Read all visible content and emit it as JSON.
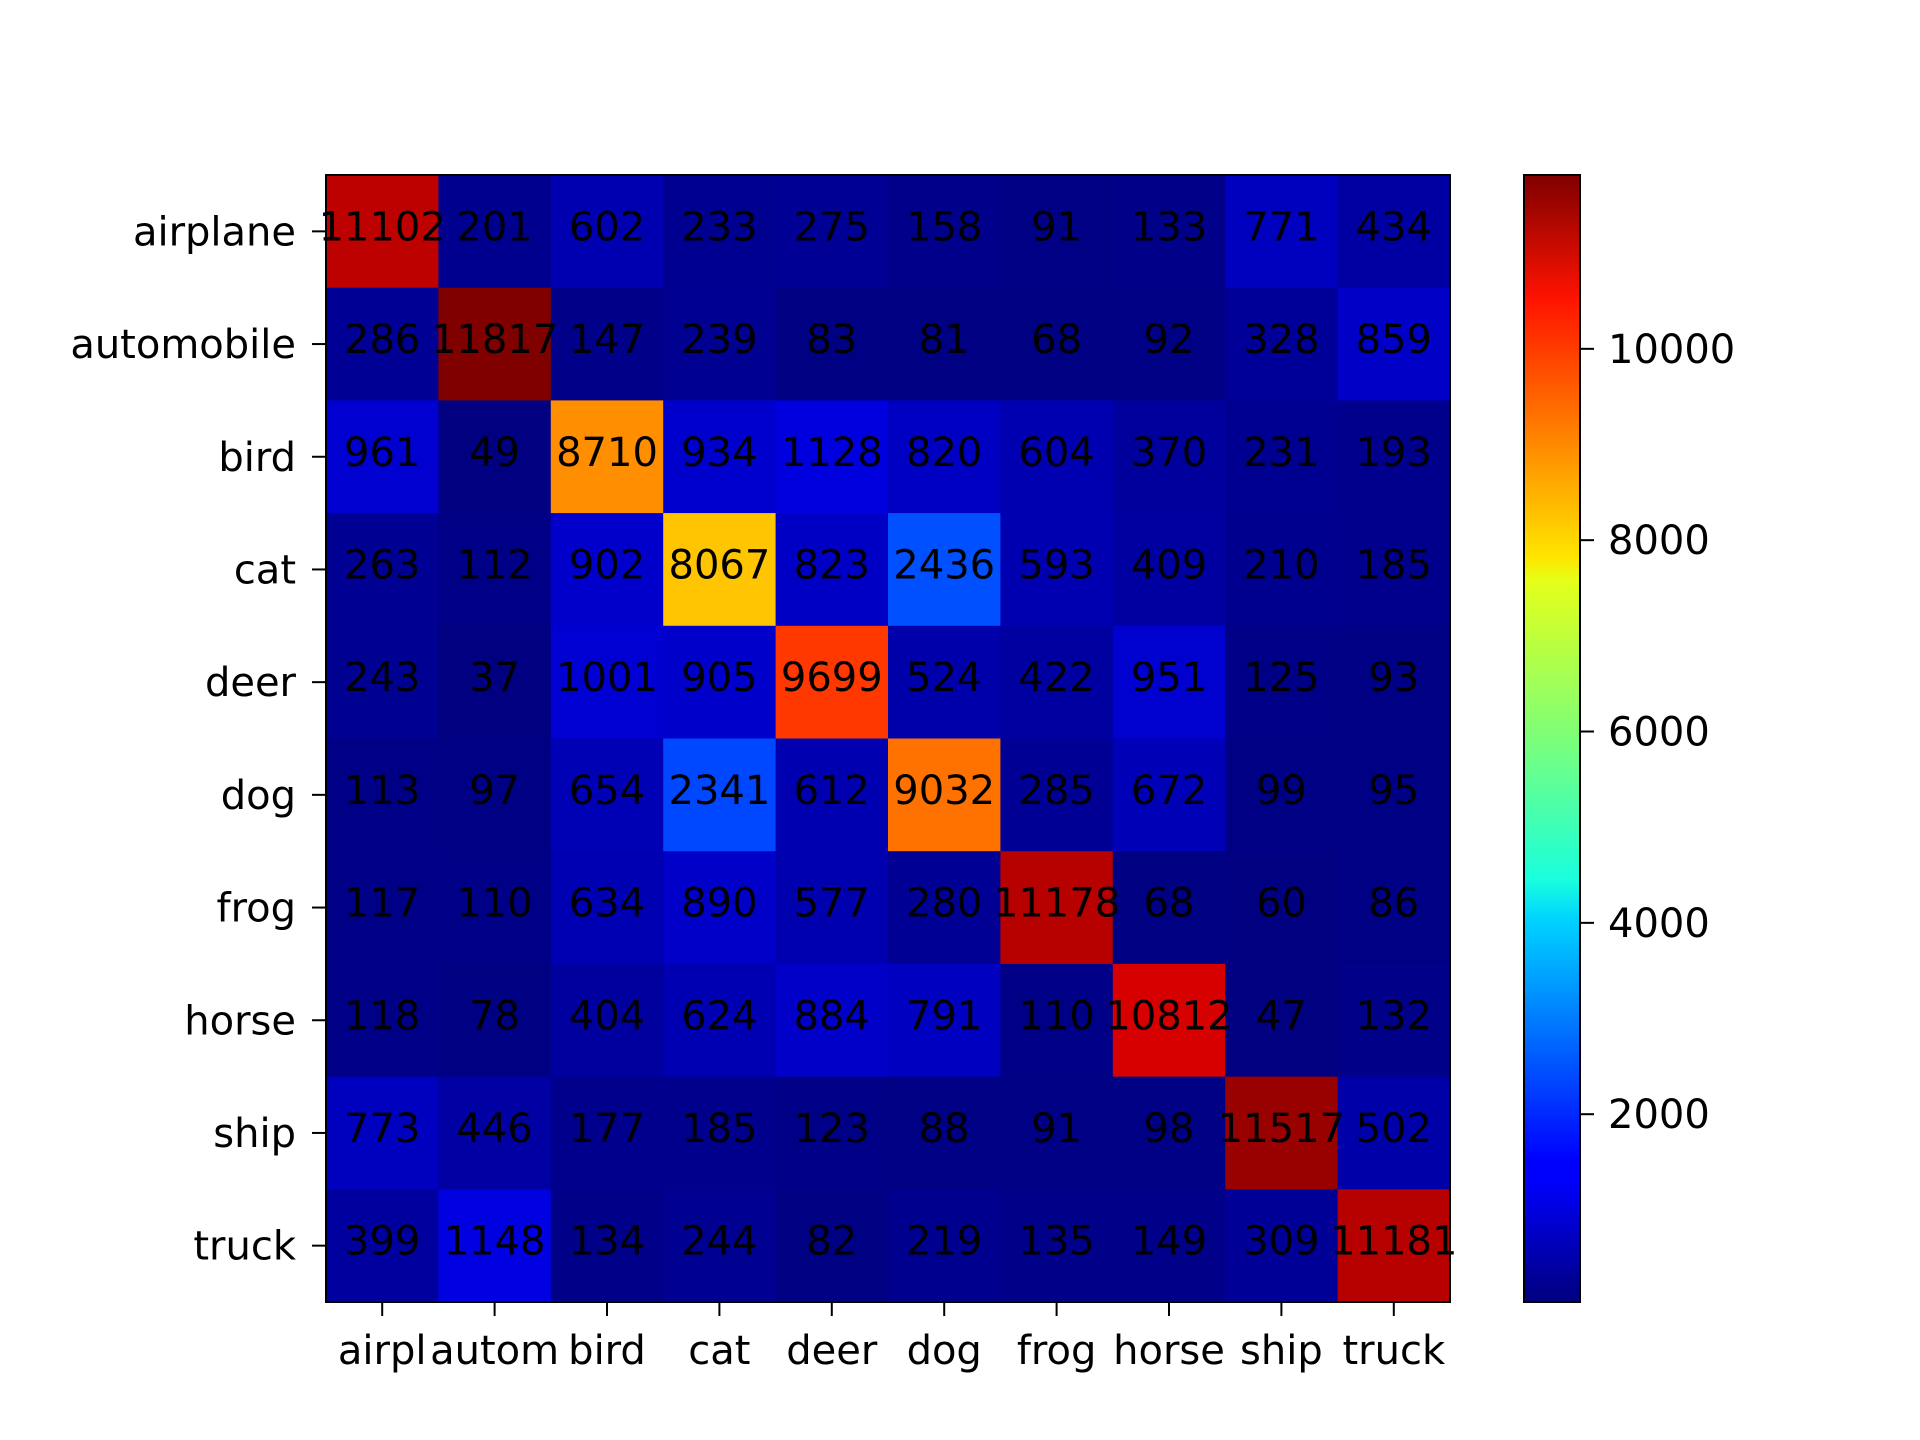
{
  "chart_data": {
    "type": "heatmap",
    "colormap": "jet",
    "row_labels": [
      "airplane",
      "automobile",
      "bird",
      "cat",
      "deer",
      "dog",
      "frog",
      "horse",
      "ship",
      "truck"
    ],
    "col_labels": [
      "airpl",
      "autom",
      "bird",
      "cat",
      "deer",
      "dog",
      "frog",
      "horse",
      "ship",
      "truck"
    ],
    "values": [
      [
        11102,
        201,
        602,
        233,
        275,
        158,
        91,
        133,
        771,
        434
      ],
      [
        286,
        11817,
        147,
        239,
        83,
        81,
        68,
        92,
        328,
        859
      ],
      [
        961,
        49,
        8710,
        934,
        1128,
        820,
        604,
        370,
        231,
        193
      ],
      [
        263,
        112,
        902,
        8067,
        823,
        2436,
        593,
        409,
        210,
        185
      ],
      [
        243,
        37,
        1001,
        905,
        9699,
        524,
        422,
        951,
        125,
        93
      ],
      [
        113,
        97,
        654,
        2341,
        612,
        9032,
        285,
        672,
        99,
        95
      ],
      [
        117,
        110,
        634,
        890,
        577,
        280,
        11178,
        68,
        60,
        86
      ],
      [
        118,
        78,
        404,
        624,
        884,
        791,
        110,
        10812,
        47,
        132
      ],
      [
        773,
        446,
        177,
        185,
        123,
        88,
        91,
        98,
        11517,
        502
      ],
      [
        399,
        1148,
        134,
        244,
        82,
        219,
        135,
        149,
        309,
        11181
      ]
    ],
    "colorbar": {
      "min": 37,
      "max": 11817,
      "ticks": [
        2000,
        4000,
        6000,
        8000,
        10000
      ]
    },
    "title": "",
    "xlabel": "",
    "ylabel": "",
    "grid": false,
    "legend": "colorbar-right"
  }
}
